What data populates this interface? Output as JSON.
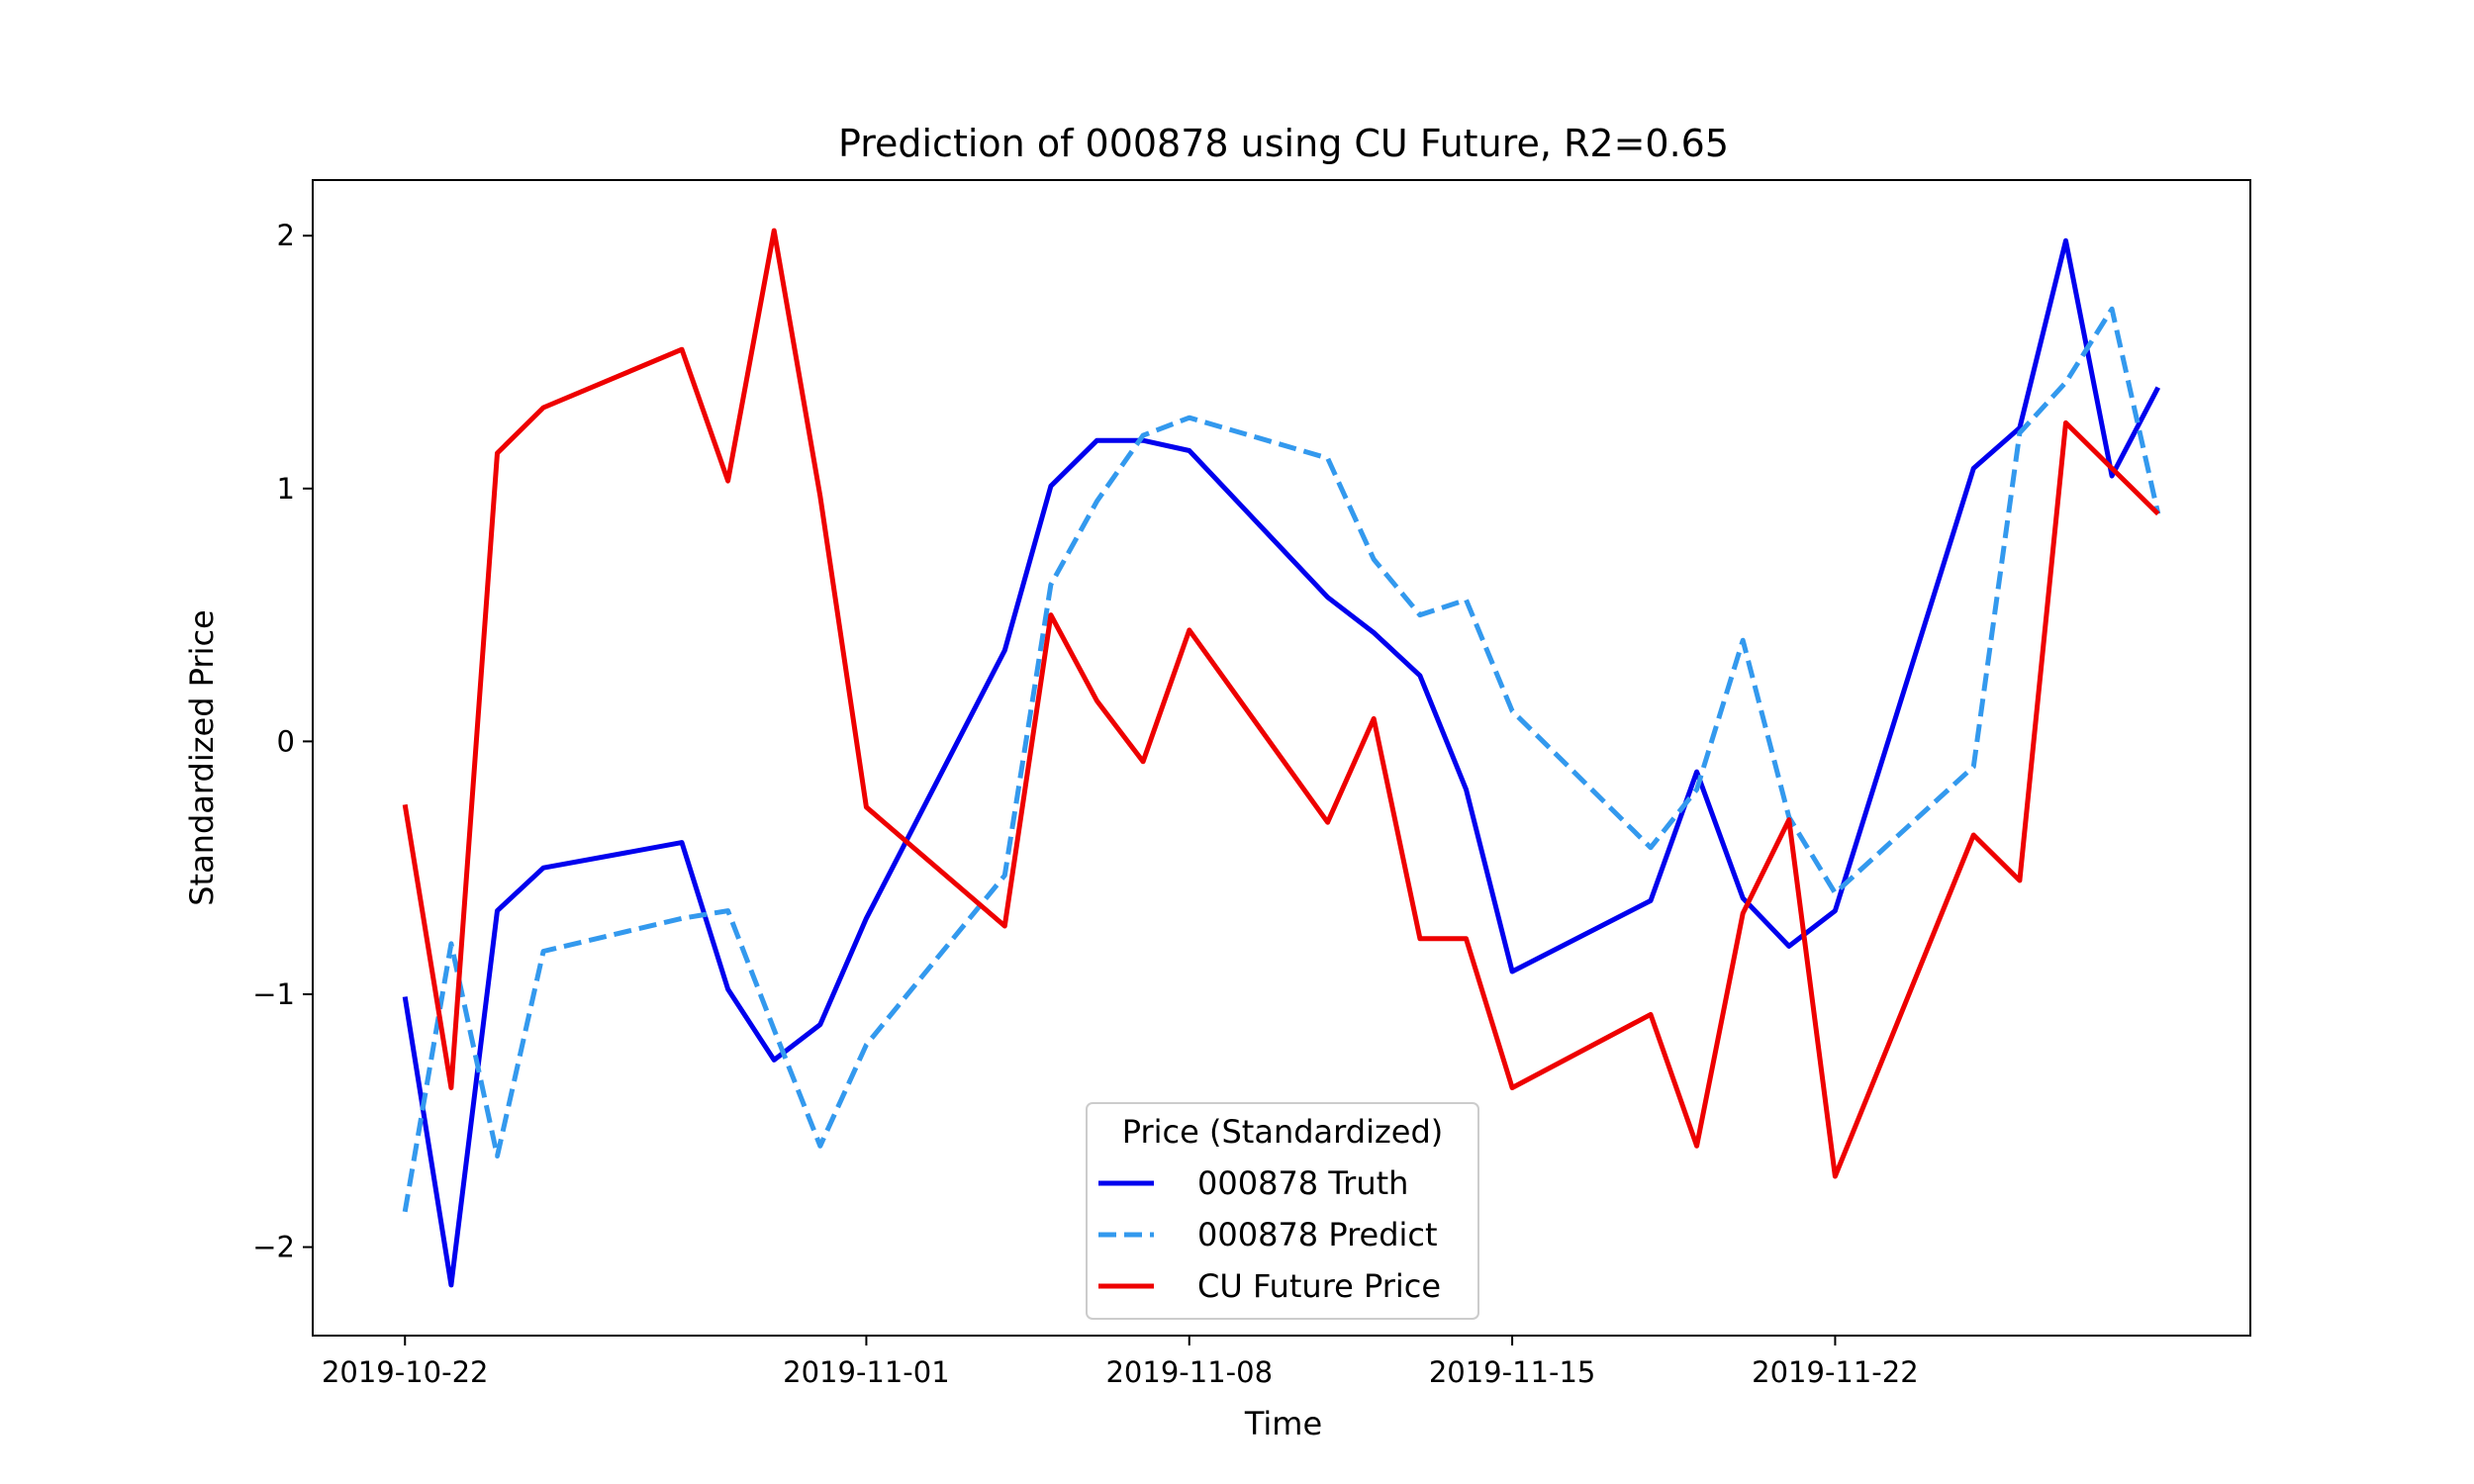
{
  "chart_data": {
    "type": "line",
    "title": "Prediction of 000878 using CU Future, R2=0.65",
    "xlabel": "Time",
    "ylabel": "Standardized Price",
    "ylim": [
      -2.35,
      2.22
    ],
    "xlim": [
      "2019-10-20",
      "2019-12-01"
    ],
    "x_ticks": [
      "2019-10-22",
      "2019-11-01",
      "2019-11-08",
      "2019-11-15",
      "2019-11-22"
    ],
    "y_ticks": [
      {
        "value": 2,
        "label": "2"
      },
      {
        "value": 1,
        "label": "1"
      },
      {
        "value": 0,
        "label": "0"
      },
      {
        "value": -1,
        "label": "−1"
      },
      {
        "value": -2,
        "label": "−2"
      }
    ],
    "grid": false,
    "legend": {
      "title": "Price (Standardized)",
      "position": "lower-center"
    },
    "x": [
      "2019-10-22",
      "2019-10-23",
      "2019-10-24",
      "2019-10-25",
      "2019-10-28",
      "2019-10-29",
      "2019-10-30",
      "2019-10-31",
      "2019-11-01",
      "2019-11-04",
      "2019-11-05",
      "2019-11-06",
      "2019-11-07",
      "2019-11-08",
      "2019-11-11",
      "2019-11-12",
      "2019-11-13",
      "2019-11-14",
      "2019-11-15",
      "2019-11-18",
      "2019-11-19",
      "2019-11-20",
      "2019-11-21",
      "2019-11-22",
      "2019-11-25",
      "2019-11-26",
      "2019-11-27",
      "2019-11-28",
      "2019-11-29"
    ],
    "series": [
      {
        "name": "000878 Truth",
        "color": "#0000ee",
        "dash": "solid",
        "values": [
          -1.01,
          -2.15,
          -0.67,
          -0.5,
          -0.4,
          -0.98,
          -1.26,
          -1.12,
          -0.7,
          0.36,
          1.01,
          1.19,
          1.19,
          1.15,
          0.57,
          0.43,
          0.26,
          -0.19,
          -0.91,
          -0.63,
          -0.12,
          -0.62,
          -0.81,
          -0.67,
          1.08,
          1.24,
          1.98,
          1.05,
          1.4
        ]
      },
      {
        "name": "000878 Predict",
        "color": "#3399ee",
        "dash": "dashed",
        "values": [
          -1.86,
          -0.8,
          -1.64,
          -0.83,
          -0.7,
          -0.67,
          -1.14,
          -1.6,
          -1.2,
          -0.53,
          0.62,
          0.95,
          1.21,
          1.28,
          1.12,
          0.72,
          0.5,
          0.56,
          0.12,
          -0.42,
          -0.19,
          0.4,
          -0.3,
          -0.6,
          -0.1,
          1.22,
          1.42,
          1.71,
          0.9
        ]
      },
      {
        "name": "CU Future Price",
        "color": "#ee0000",
        "dash": "solid",
        "values": [
          -0.25,
          -1.37,
          1.14,
          1.32,
          1.55,
          1.03,
          2.02,
          0.97,
          -0.26,
          -0.73,
          0.5,
          0.16,
          -0.08,
          0.44,
          -0.32,
          0.09,
          -0.78,
          -0.78,
          -1.37,
          -1.08,
          -1.6,
          -0.68,
          -0.31,
          -1.72,
          -0.37,
          -0.55,
          1.26,
          1.08,
          0.9
        ]
      }
    ]
  }
}
